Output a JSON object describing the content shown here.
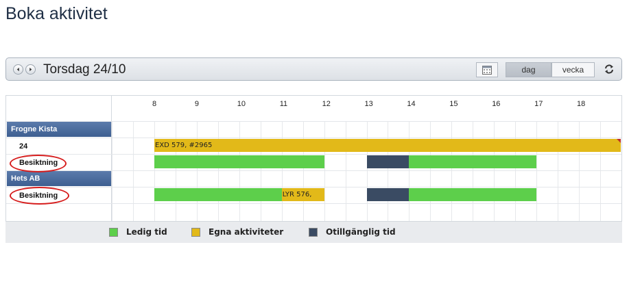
{
  "page": {
    "title": "Boka aktivitet"
  },
  "toolbar": {
    "date_title": "Torsdag 24/10",
    "view_day": "dag",
    "view_week": "vecka"
  },
  "timeline": {
    "hours": [
      "8",
      "9",
      "10",
      "11",
      "12",
      "13",
      "14",
      "15",
      "16",
      "17",
      "18"
    ]
  },
  "groups": [
    {
      "name": "Frogne Kista",
      "rows": [
        {
          "label": "24",
          "bars": [
            {
              "type": "own",
              "text": "EXD 579, #2965",
              "start": 8.0,
              "end": 19.0
            }
          ]
        },
        {
          "label": "Besiktning",
          "bars": [
            {
              "type": "free",
              "start": 8.0,
              "end": 12.0
            },
            {
              "type": "unavail",
              "start": 13.0,
              "end": 14.0
            },
            {
              "type": "free",
              "start": 14.0,
              "end": 17.0
            }
          ]
        }
      ]
    },
    {
      "name": "Hets AB",
      "rows": [
        {
          "label": "Besiktning",
          "bars": [
            {
              "type": "free",
              "start": 8.0,
              "end": 11.0
            },
            {
              "type": "own",
              "text": "LYR 576,",
              "start": 11.0,
              "end": 12.0
            },
            {
              "type": "unavail",
              "start": 13.0,
              "end": 14.0
            },
            {
              "type": "free",
              "start": 14.0,
              "end": 17.0
            }
          ]
        }
      ]
    }
  ],
  "legend": [
    {
      "label": "Ledig tid",
      "color": "#5dcf4b"
    },
    {
      "label": "Egna aktiviteter",
      "color": "#e2b919"
    },
    {
      "label": "Otillgänglig tid",
      "color": "#3a4b63"
    }
  ],
  "colors": {
    "free": "#5dcf4b",
    "own": "#e2b919",
    "unavailable": "#3a4b63",
    "annotation": "#d61c1c"
  },
  "icons": [
    "chevron-left-icon",
    "chevron-right-icon",
    "calendar-icon",
    "refresh-icon"
  ]
}
